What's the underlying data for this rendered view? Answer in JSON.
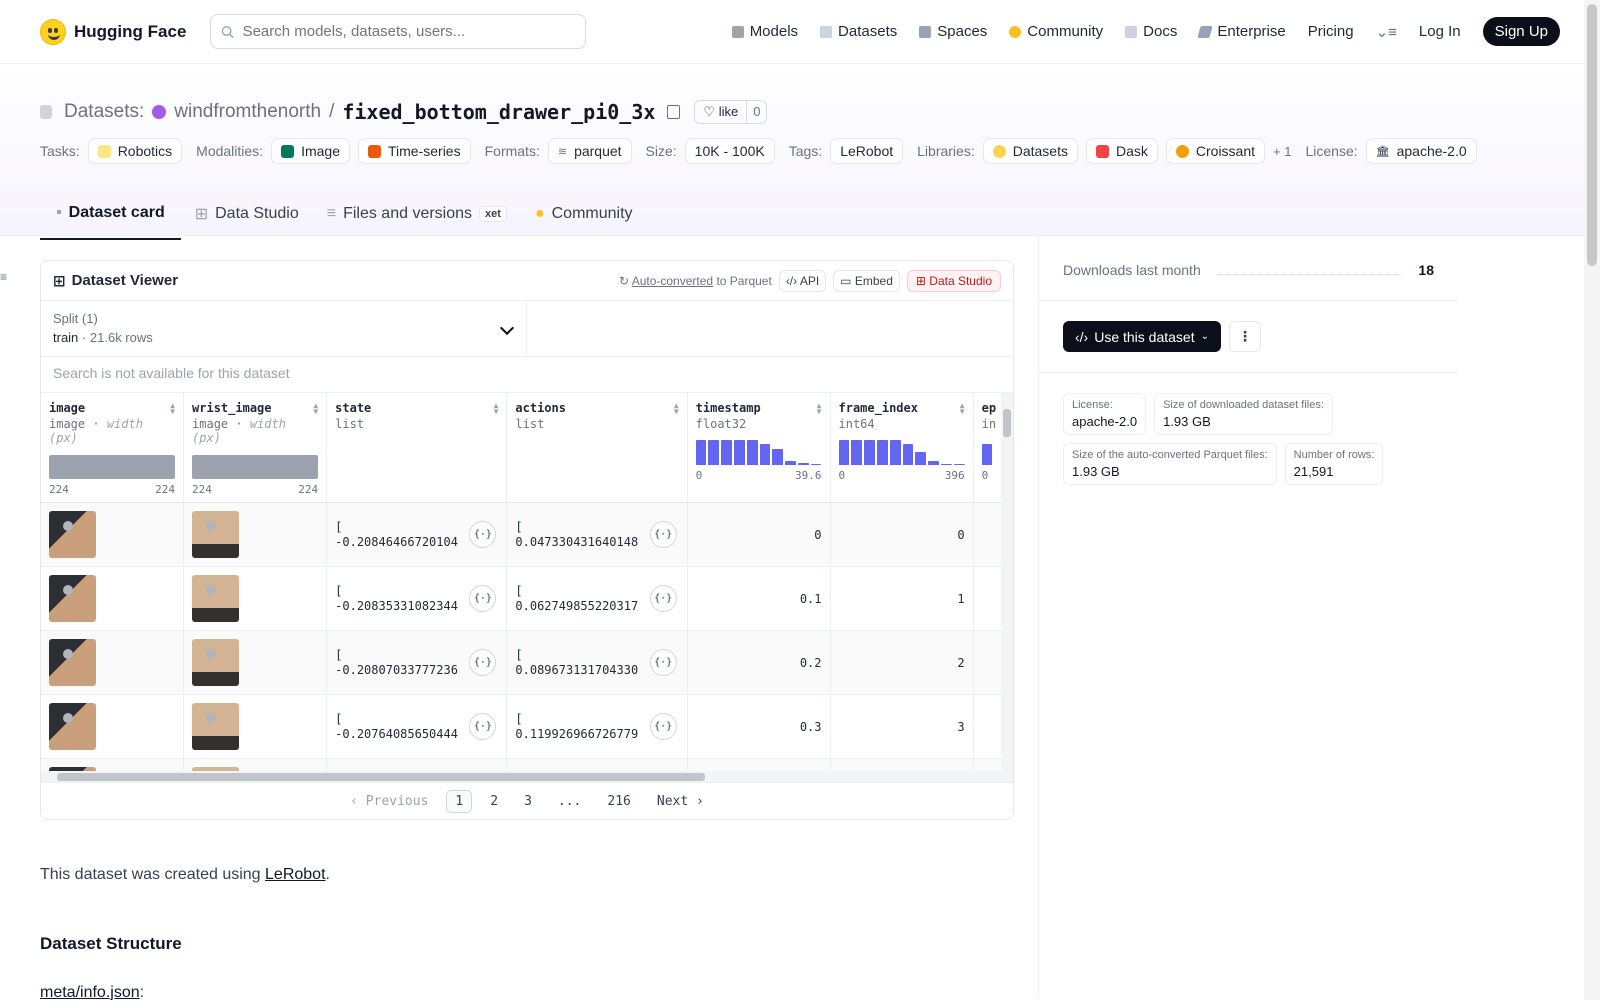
{
  "nav": {
    "brand": "Hugging Face",
    "search_placeholder": "Search models, datasets, users...",
    "links": [
      "Models",
      "Datasets",
      "Spaces",
      "Community",
      "Docs",
      "Enterprise",
      "Pricing"
    ],
    "login": "Log In",
    "signup": "Sign Up"
  },
  "header": {
    "section": "Datasets:",
    "org": "windfromthenorth",
    "sep": "/",
    "repo": "fixed_bottom_drawer_pi0_3x",
    "like_label": "like",
    "like_count": "0",
    "tasks_label": "Tasks:",
    "task": "Robotics",
    "modalities_label": "Modalities:",
    "modality_1": "Image",
    "modality_2": "Time-series",
    "formats_label": "Formats:",
    "format": "parquet",
    "size_label": "Size:",
    "size": "10K - 100K",
    "tags_label": "Tags:",
    "tag": "LeRobot",
    "libraries_label": "Libraries:",
    "lib_1": "Datasets",
    "lib_2": "Dask",
    "lib_3": "Croissant",
    "lib_more": "+ 1",
    "license_label": "License:",
    "license": "apache-2.0"
  },
  "tabs": {
    "card": "Dataset card",
    "studio": "Data Studio",
    "files": "Files and versions",
    "xet": "xet",
    "community": "Community"
  },
  "viewer": {
    "title": "Dataset Viewer",
    "auto_converted": "Auto-converted",
    "to_parquet": "to Parquet",
    "api": "API",
    "embed": "Embed",
    "data_studio": "Data Studio",
    "split_label": "Split (1)",
    "split_name": "train",
    "split_rows": "21.6k rows",
    "search_note": "Search is not available for this dataset",
    "columns": {
      "image": {
        "name": "image",
        "type": "image",
        "sub": "width (px)",
        "min": "224",
        "max": "224"
      },
      "wrist": {
        "name": "wrist_image",
        "type": "image",
        "sub": "width (px)",
        "min": "224",
        "max": "224"
      },
      "state": {
        "name": "state",
        "type": "list"
      },
      "actions": {
        "name": "actions",
        "type": "list"
      },
      "timestamp": {
        "name": "timestamp",
        "type": "float32",
        "min": "0",
        "max": "39.6",
        "hist": [
          0.95,
          0.95,
          0.95,
          0.95,
          0.95,
          0.8,
          0.6,
          0.15,
          0.08,
          0.05
        ]
      },
      "frame": {
        "name": "frame_index",
        "type": "int64",
        "min": "0",
        "max": "396",
        "hist": [
          0.95,
          0.95,
          0.95,
          0.95,
          0.95,
          0.8,
          0.5,
          0.15,
          0.05,
          0.05
        ]
      },
      "ep": {
        "name": "ep",
        "type": "in",
        "min": "0"
      }
    },
    "rows": [
      {
        "state_open": "[",
        "state": "-0.20846466720104...",
        "actions_open": "[",
        "actions": "0.047330431640148...",
        "timestamp": "0",
        "frame": "0"
      },
      {
        "state_open": "[",
        "state": "-0.20835331082344...",
        "actions_open": "[",
        "actions": "0.062749855220317...",
        "timestamp": "0.1",
        "frame": "1"
      },
      {
        "state_open": "[",
        "state": "-0.20807033777236...",
        "actions_open": "[",
        "actions": "0.089673131704330...",
        "timestamp": "0.2",
        "frame": "2"
      },
      {
        "state_open": "[",
        "state": "-0.20764085650444...",
        "actions_open": "[",
        "actions": "0.119926966726779...",
        "timestamp": "0.3",
        "frame": "3"
      }
    ],
    "pager": {
      "prev": "Previous",
      "pages": [
        "1",
        "2",
        "3",
        "...",
        "216"
      ],
      "next": "Next"
    }
  },
  "prose": {
    "intro_pre": "This dataset was created using ",
    "intro_link": "LeRobot",
    "intro_post": ".",
    "heading": "Dataset Structure",
    "file_link": "meta/info.json",
    "file_post": ":"
  },
  "sidebar": {
    "downloads_label": "Downloads last month",
    "downloads": "18",
    "use_button": "Use this dataset",
    "cards": [
      {
        "k": "License:",
        "v": "apache-2.0"
      },
      {
        "k": "Size of downloaded dataset files:",
        "v": "1.93 GB"
      },
      {
        "k": "Size of the auto-converted Parquet files:",
        "v": "1.93 GB"
      },
      {
        "k": "Number of rows:",
        "v": "21,591"
      }
    ]
  },
  "colors": {
    "accent": "#6366f1",
    "brand": "#ffd21e",
    "dark": "#0b0f19"
  }
}
